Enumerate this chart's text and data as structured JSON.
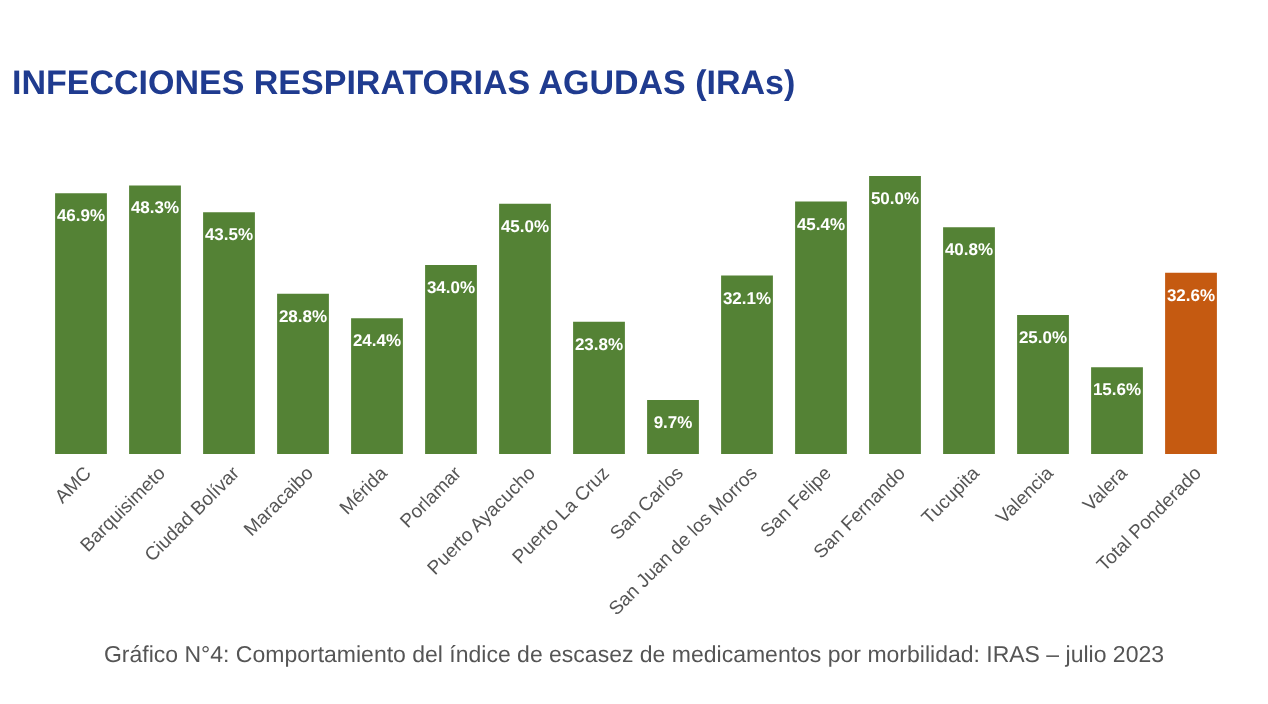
{
  "chart_data": {
    "type": "bar",
    "title": "INFECCIONES RESPIRATORIAS AGUDAS (IRAs)",
    "categories": [
      "AMC",
      "Barquisimeto",
      "Ciudad Bolívar",
      "Maracaibo",
      "Mérida",
      "Porlamar",
      "Puerto Ayacucho",
      "Puerto La Cruz",
      "San Carlos",
      "San Juan de los Morros",
      "San Felipe",
      "San Fernando",
      "Tucupita",
      "Valencia",
      "Valera",
      "Total Ponderado"
    ],
    "values": [
      46.9,
      48.3,
      43.5,
      28.8,
      24.4,
      34.0,
      45.0,
      23.8,
      9.7,
      32.1,
      45.4,
      50.0,
      40.8,
      25.0,
      15.6,
      32.6
    ],
    "colors": [
      "#548235",
      "#548235",
      "#548235",
      "#548235",
      "#548235",
      "#548235",
      "#548235",
      "#548235",
      "#548235",
      "#548235",
      "#548235",
      "#548235",
      "#548235",
      "#548235",
      "#548235",
      "#c55a11"
    ],
    "value_labels": [
      "46.9%",
      "48.3%",
      "43.5%",
      "28.8%",
      "24.4%",
      "34.0%",
      "45.0%",
      "23.8%",
      "9.7%",
      "32.1%",
      "45.4%",
      "50.0%",
      "40.8%",
      "25.0%",
      "15.6%",
      "32.6%"
    ],
    "ylim": [
      0,
      50
    ],
    "tick_labels": "x",
    "annotations": [
      "Gráfico N°4: Comportamiento del índice de escasez de medicamentos por morbilidad: IRAS – julio 2023"
    ]
  }
}
